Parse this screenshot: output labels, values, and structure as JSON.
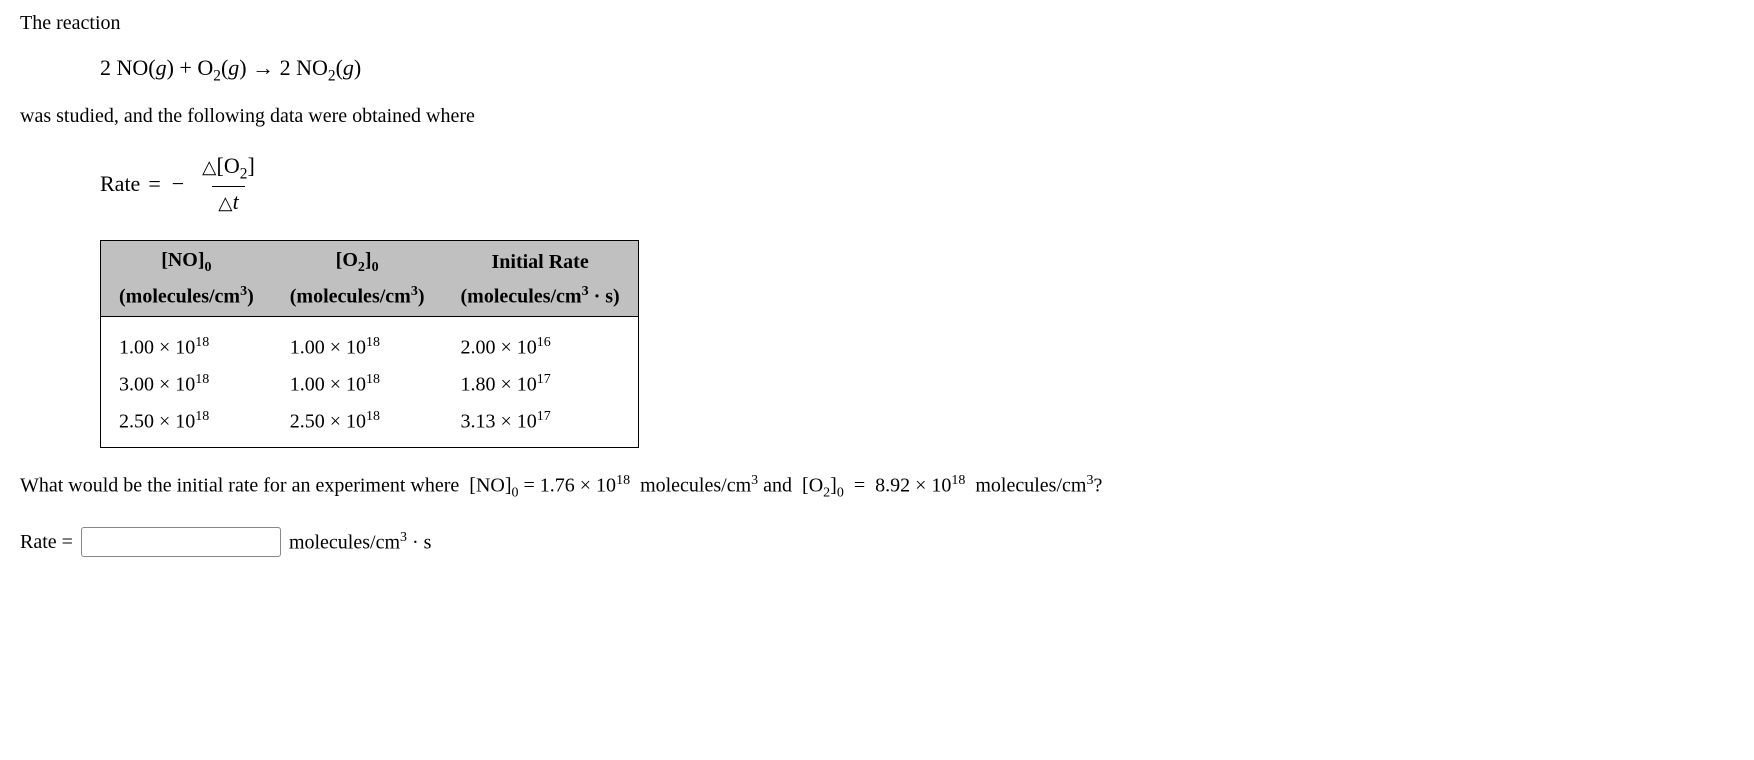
{
  "intro": "The reaction",
  "equation": "2 NO(g) + O₂(g) → 2 NO₂(g)",
  "intro2": "was studied, and the following data were obtained where",
  "rate_label": "Rate",
  "rate_eq_numerator": "△[O₂]",
  "rate_eq_denominator": "△t",
  "table": {
    "type": "table",
    "header_bg": "#c0c0c0",
    "border_color": "#000000",
    "columns": [
      {
        "line1": "[NO]₀",
        "line2": "(molecules/cm³)"
      },
      {
        "line1": "[O₂]₀",
        "line2": "(molecules/cm³)"
      },
      {
        "line1": "Initial Rate",
        "line2": "(molecules/cm³ · s)"
      }
    ],
    "rows": [
      [
        "1.00 × 10¹⁸",
        "1.00 × 10¹⁸",
        "2.00 × 10¹⁶"
      ],
      [
        "3.00 × 10¹⁸",
        "1.00 × 10¹⁸",
        "1.80 × 10¹⁷"
      ],
      [
        "2.50 × 10¹⁸",
        "2.50 × 10¹⁸",
        "3.13 × 10¹⁷"
      ]
    ]
  },
  "question_prefix": "What would be the initial rate for an experiment where ",
  "question_no_label": "[NO]₀",
  "question_no_value": "1.76 × 10¹⁸",
  "question_no_unit": "molecules/cm³",
  "question_and": " and ",
  "question_o2_label": "[O₂]₀",
  "question_o2_value": "8.92 × 10¹⁸",
  "question_o2_unit": "molecules/cm³",
  "question_suffix": "?",
  "answer_label": "Rate =",
  "answer_unit": "molecules/cm³ · s",
  "answer_value": ""
}
